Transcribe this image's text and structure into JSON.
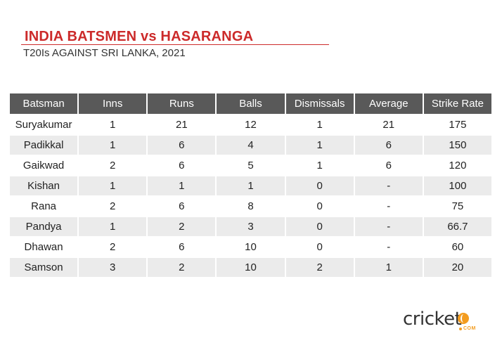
{
  "title": "INDIA BATSMEN vs HASARANGA",
  "subtitle": "T20Is AGAINST SRI LANKA, 2021",
  "colors": {
    "title": "#cc2a2a",
    "header_bg": "#595959",
    "alt_row": "#ebebeb",
    "logo_accent": "#f39c1f"
  },
  "logo": {
    "word": "cricket",
    "suffix": "COM"
  },
  "chart_data": {
    "type": "table",
    "columns": [
      "Batsman",
      "Inns",
      "Runs",
      "Balls",
      "Dismissals",
      "Average",
      "Strike Rate"
    ],
    "rows": [
      [
        "Suryakumar",
        "1",
        "21",
        "12",
        "1",
        "21",
        "175"
      ],
      [
        "Padikkal",
        "1",
        "6",
        "4",
        "1",
        "6",
        "150"
      ],
      [
        "Gaikwad",
        "2",
        "6",
        "5",
        "1",
        "6",
        "120"
      ],
      [
        "Kishan",
        "1",
        "1",
        "1",
        "0",
        "-",
        "100"
      ],
      [
        "Rana",
        "2",
        "6",
        "8",
        "0",
        "-",
        "75"
      ],
      [
        "Pandya",
        "1",
        "2",
        "3",
        "0",
        "-",
        "66.7"
      ],
      [
        "Dhawan",
        "2",
        "6",
        "10",
        "0",
        "-",
        "60"
      ],
      [
        "Samson",
        "3",
        "2",
        "10",
        "2",
        "1",
        "20"
      ]
    ]
  }
}
